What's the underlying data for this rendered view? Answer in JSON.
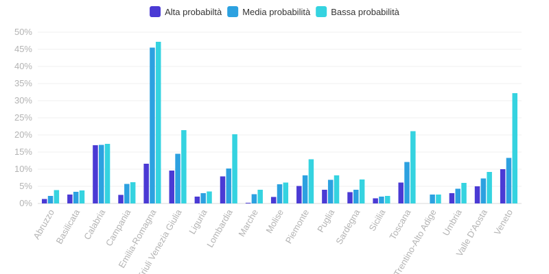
{
  "chart_data": {
    "type": "bar",
    "title": "",
    "xlabel": "",
    "ylabel": "",
    "ylim": [
      0,
      50
    ],
    "ytick_labels": [
      "0%",
      "5%",
      "10%",
      "15%",
      "20%",
      "25%",
      "30%",
      "35%",
      "40%",
      "45%",
      "50%"
    ],
    "grid": true,
    "legend_position": "top-center",
    "categories": [
      "Abruzzo",
      "Basilicata",
      "Calabria",
      "Campania",
      "Emilia-Romagna",
      "Friuli Venezia Giulia",
      "Liguria",
      "Lombardia",
      "Marche",
      "Molise",
      "Piemonte",
      "Puglia",
      "Sardegna",
      "Sicilia",
      "Toscana",
      "Trentino-Alto Adige",
      "Umbria",
      "Valle D'Aosta",
      "Veneto"
    ],
    "series": [
      {
        "name": "Alta probabiltà",
        "color": "#4a3ad4",
        "values": [
          1.3,
          2.6,
          17.0,
          2.5,
          11.6,
          9.6,
          2.0,
          7.9,
          0.2,
          1.9,
          5.1,
          4.0,
          3.3,
          1.5,
          6.1,
          0.0,
          3.0,
          5.0,
          10.0
        ]
      },
      {
        "name": "Media probabilità",
        "color": "#2ca1e0",
        "values": [
          2.2,
          3.4,
          17.1,
          5.7,
          45.5,
          14.5,
          3.0,
          10.2,
          2.7,
          5.6,
          8.2,
          6.9,
          4.0,
          2.0,
          12.1,
          2.6,
          4.3,
          7.3,
          13.3
        ]
      },
      {
        "name": "Bassa probabilità",
        "color": "#35d3e0",
        "values": [
          3.9,
          3.8,
          17.4,
          6.2,
          47.2,
          21.4,
          3.5,
          20.2,
          4.0,
          6.1,
          12.9,
          8.2,
          7.0,
          2.2,
          21.1,
          2.6,
          6.0,
          9.2,
          32.2
        ]
      }
    ]
  }
}
